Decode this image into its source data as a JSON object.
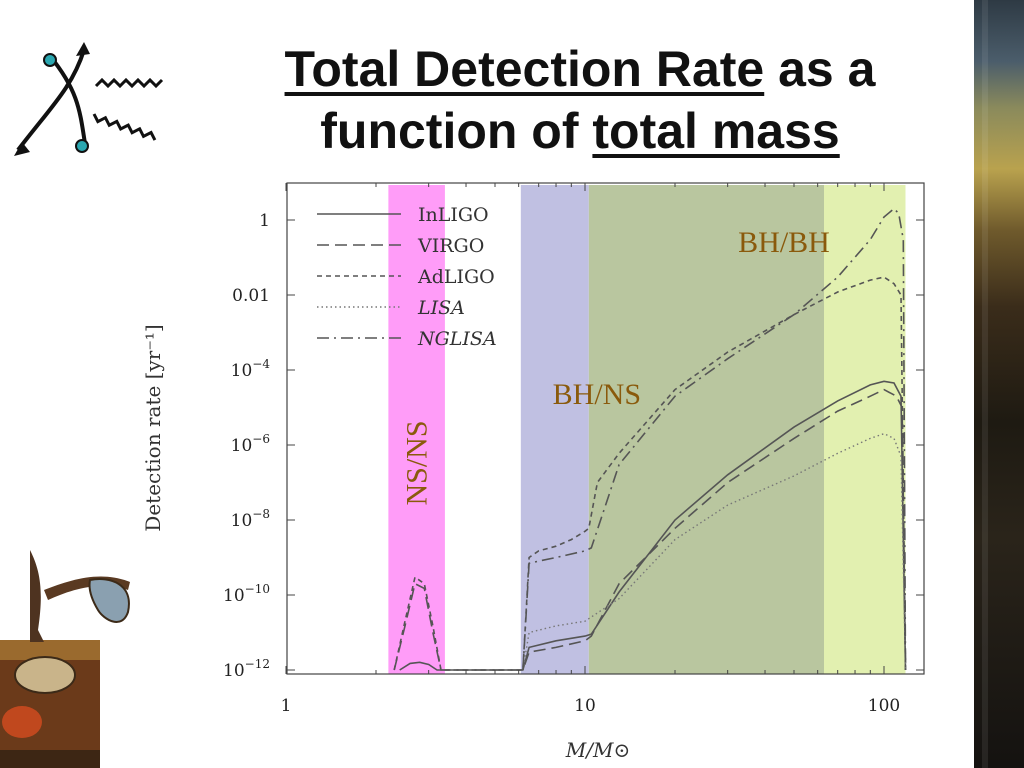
{
  "slide": {
    "title_part1": "Total Detection Rate",
    "title_part2": " as a",
    "title_part3": "function of ",
    "title_part4": "total mass"
  },
  "colors": {
    "ns_ns_band": "#ff9cf8",
    "bh_ns_band": "#c0c0e2",
    "bh_bh_band": "#b9c69f",
    "bh_bh_edge_band": "#e2f0b0",
    "region_label": "#8a5a0c"
  },
  "chart_data": {
    "type": "line",
    "xlabel": "M/M⊙",
    "ylabel": "Detection rate [yr⁻¹]",
    "xscale": "log",
    "yscale": "log",
    "xlim": [
      1,
      120
    ],
    "ylim": [
      1e-12,
      10
    ],
    "x_ticks": [
      {
        "value": 1,
        "label": "1"
      },
      {
        "value": 10,
        "label": "10"
      },
      {
        "value": 100,
        "label": "100"
      }
    ],
    "y_ticks": [
      {
        "value": 1,
        "base": "1",
        "exp": ""
      },
      {
        "value": 0.01,
        "base": "0.01",
        "exp": ""
      },
      {
        "value": 0.0001,
        "base": "10",
        "exp": "−4"
      },
      {
        "value": 1e-06,
        "base": "10",
        "exp": "−6"
      },
      {
        "value": 1e-08,
        "base": "10",
        "exp": "−8"
      },
      {
        "value": 1e-10,
        "base": "10",
        "exp": "−10"
      },
      {
        "value": 1e-12,
        "base": "10",
        "exp": "−12"
      }
    ],
    "regions": [
      {
        "label": "NS/NS",
        "x_from": 2.2,
        "x_to": 3.4,
        "color": "#ff9cf8"
      },
      {
        "label": "BH/NS",
        "x_from": 6.1,
        "x_to": 10.3,
        "color": "#c0c0e2"
      },
      {
        "label": "BH/BH",
        "x_from": 10.3,
        "x_to": 63,
        "color": "#b9c69f"
      },
      {
        "label": "",
        "x_from": 63,
        "x_to": 118,
        "color": "#e2f0b0"
      }
    ],
    "legend": {
      "position": "top-left",
      "entries": [
        "InLIGO",
        "VIRGO",
        "AdLIGO",
        "LISA",
        "NGLISA"
      ]
    },
    "series": [
      {
        "name": "InLIGO",
        "style": "solid",
        "x": [
          2.4,
          2.6,
          2.8,
          3.0,
          3.2,
          6.2,
          6.5,
          8,
          10,
          10.5,
          13,
          20,
          30,
          50,
          70,
          90,
          100,
          108,
          114,
          118
        ],
        "y": [
          1e-12,
          1.5e-12,
          1.6e-12,
          1.4e-12,
          1e-12,
          1e-12,
          4e-12,
          6e-12,
          8e-12,
          9e-12,
          1.2e-10,
          1e-08,
          1.6e-07,
          3e-06,
          1.5e-05,
          4e-05,
          5e-05,
          4.5e-05,
          2e-05,
          1e-12
        ]
      },
      {
        "name": "VIRGO",
        "style": "dash",
        "x": [
          2.3,
          2.5,
          2.7,
          2.9,
          3.1,
          3.3,
          6.2,
          6.5,
          8,
          10,
          10.5,
          13,
          20,
          30,
          50,
          70,
          90,
          100,
          110,
          115,
          118
        ],
        "y": [
          1e-12,
          1.5e-11,
          2e-10,
          1.5e-10,
          1e-11,
          1e-12,
          1e-12,
          3e-12,
          4e-12,
          6e-12,
          8e-12,
          2e-10,
          6e-09,
          1e-07,
          1.5e-06,
          8e-06,
          2e-05,
          3e-05,
          2e-05,
          1e-05,
          1e-12
        ]
      },
      {
        "name": "AdLIGO",
        "style": "shortdash",
        "x": [
          2.3,
          2.5,
          2.7,
          2.9,
          3.1,
          3.3,
          6.2,
          6.5,
          7,
          8,
          9,
          10,
          10.3,
          11,
          13,
          20,
          30,
          50,
          70,
          90,
          100,
          108,
          114,
          118
        ],
        "y": [
          1e-12,
          2e-11,
          3e-10,
          2e-10,
          1.5e-11,
          1e-12,
          1e-12,
          1e-09,
          1.5e-09,
          2e-09,
          3e-09,
          5e-09,
          6e-09,
          1e-07,
          6e-07,
          3e-05,
          0.0003,
          0.003,
          0.012,
          0.025,
          0.03,
          0.02,
          0.01,
          1e-12
        ]
      },
      {
        "name": "LISA",
        "style": "dot",
        "x": [
          6.2,
          6.5,
          8,
          10,
          13,
          20,
          30,
          50,
          70,
          90,
          100,
          108,
          114,
          118
        ],
        "y": [
          1e-12,
          1e-11,
          1.5e-11,
          2e-11,
          8e-11,
          3e-09,
          2.5e-08,
          1.5e-07,
          6e-07,
          1.5e-06,
          2e-06,
          1.5e-06,
          5e-07,
          1e-12
        ]
      },
      {
        "name": "NGLISA",
        "style": "dashdot",
        "x": [
          6.2,
          6.5,
          7,
          8,
          10,
          10.5,
          13,
          20,
          30,
          50,
          70,
          90,
          100,
          108,
          112,
          116,
          118
        ],
        "y": [
          1e-12,
          7e-10,
          8e-10,
          1e-09,
          1.5e-09,
          1.8e-09,
          3e-07,
          2e-05,
          0.0002,
          0.003,
          0.03,
          0.3,
          1.2,
          2,
          1.5,
          0.3,
          1e-12
        ]
      }
    ]
  }
}
